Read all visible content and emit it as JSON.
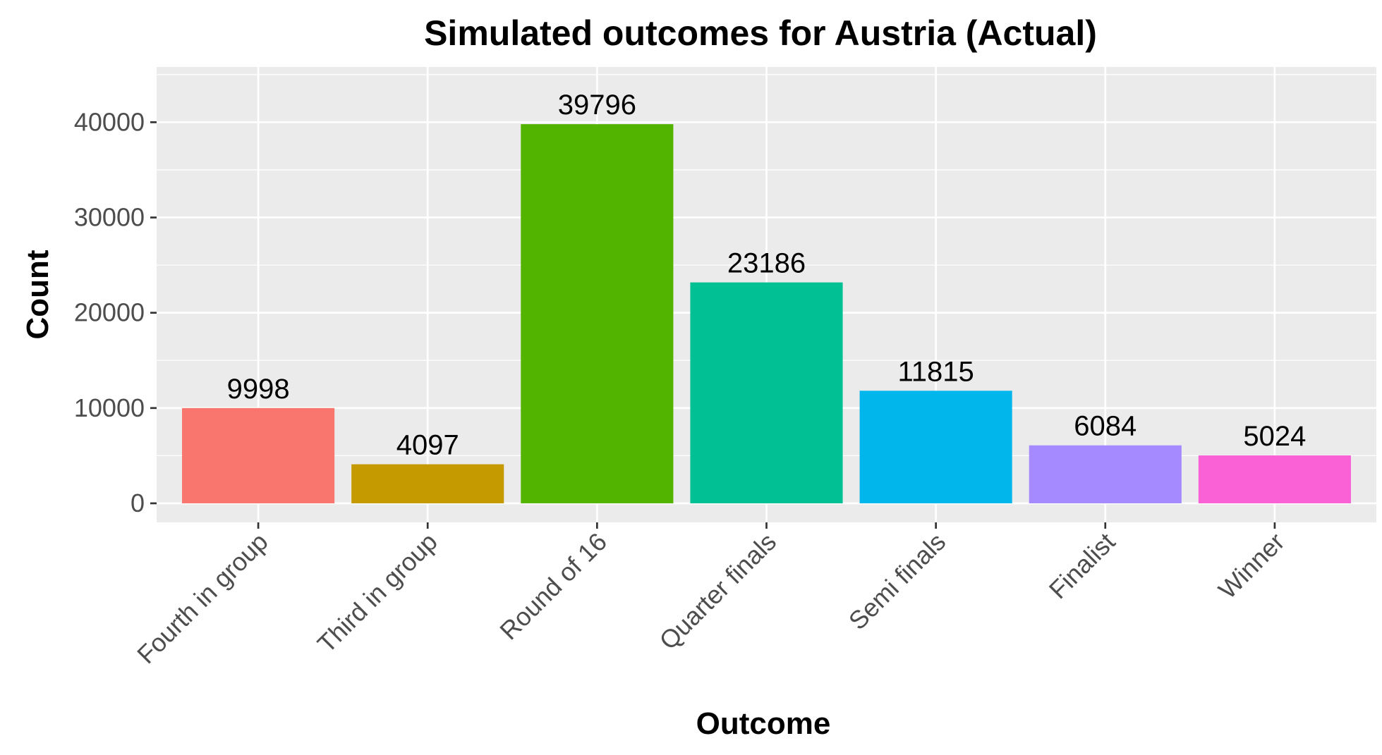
{
  "chart_data": {
    "type": "bar",
    "title": "Simulated outcomes for Austria (Actual)",
    "xlabel": "Outcome",
    "ylabel": "Count",
    "categories": [
      "Fourth in group",
      "Third in group",
      "Round of 16",
      "Quarter finals",
      "Semi finals",
      "Finalist",
      "Winner"
    ],
    "values": [
      9998,
      4097,
      39796,
      23186,
      11815,
      6084,
      5024
    ],
    "colors": [
      "#F8766D",
      "#C49A00",
      "#53B400",
      "#00C094",
      "#00B6EB",
      "#A58AFF",
      "#FB61D7"
    ],
    "yticks": [
      0,
      10000,
      20000,
      30000,
      40000
    ],
    "ytick_labels": [
      "0",
      "10000",
      "20000",
      "30000",
      "40000"
    ],
    "ylim": [
      -2000,
      45800
    ],
    "grid": true,
    "legend": "none",
    "panel_background": "#EBEBEB",
    "grid_color": "#FFFFFF"
  }
}
